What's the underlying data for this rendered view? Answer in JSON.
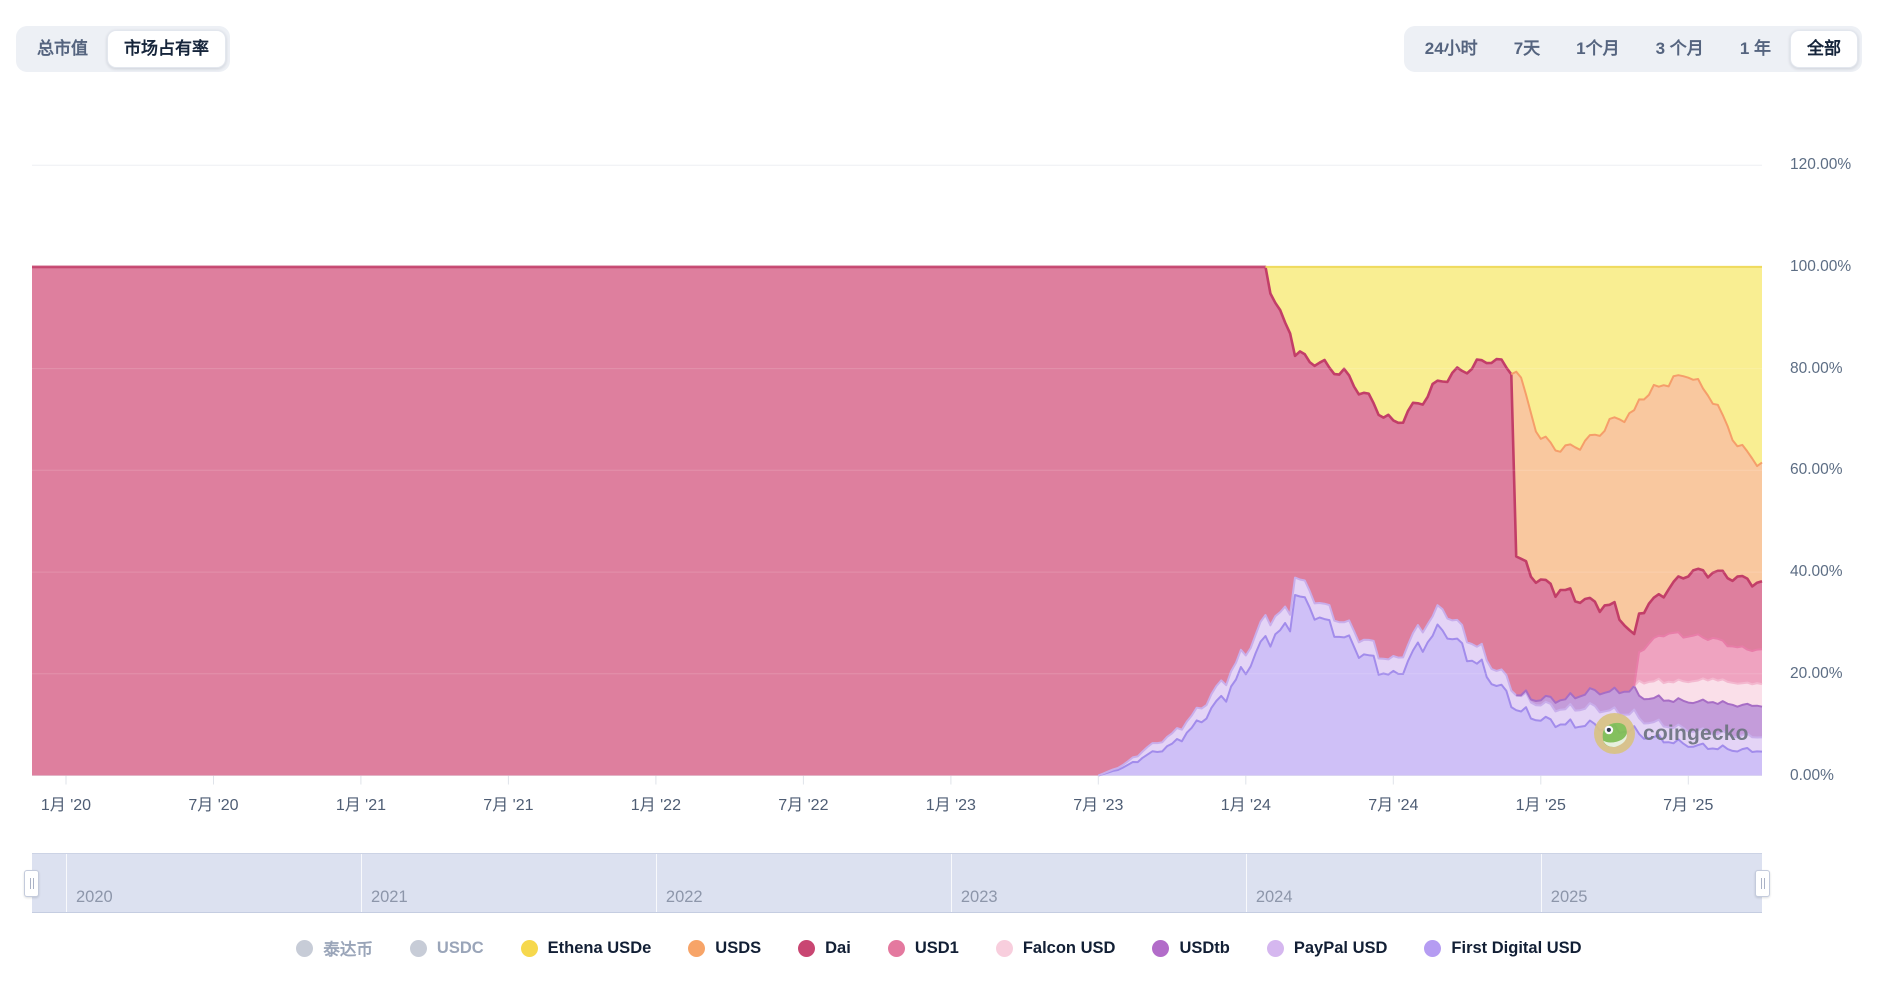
{
  "header": {
    "metric_toggle": [
      {
        "id": "total-market-cap",
        "label": "总市值",
        "selected": false
      },
      {
        "id": "market-share",
        "label": "市场占有率",
        "selected": true
      }
    ],
    "range_toggle": [
      {
        "id": "24h",
        "label": "24小时",
        "selected": false
      },
      {
        "id": "7d",
        "label": "7天",
        "selected": false
      },
      {
        "id": "1m",
        "label": "1个月",
        "selected": false
      },
      {
        "id": "3m",
        "label": "3 个月",
        "selected": false
      },
      {
        "id": "1y",
        "label": "1 年",
        "selected": false
      },
      {
        "id": "all",
        "label": "全部",
        "selected": true
      }
    ]
  },
  "chart_data": {
    "type": "area",
    "stacked": true,
    "normalized_to_percent": true,
    "x_start_month": "2019-12",
    "x_end_month": "2025-10",
    "months_total": 71,
    "ylim": [
      0,
      120
    ],
    "y_ticks": [
      {
        "label": "0.00%",
        "value": 0
      },
      {
        "label": "20.00%",
        "value": 20
      },
      {
        "label": "40.00%",
        "value": 40
      },
      {
        "label": "60.00%",
        "value": 60
      },
      {
        "label": "80.00%",
        "value": 80
      },
      {
        "label": "100.00%",
        "value": 100
      },
      {
        "label": "120.00%",
        "value": 120
      }
    ],
    "x_ticks": [
      {
        "label": "1月 '20",
        "month_index": 1
      },
      {
        "label": "7月 '20",
        "month_index": 7
      },
      {
        "label": "1月 '21",
        "month_index": 13
      },
      {
        "label": "7月 '21",
        "month_index": 19
      },
      {
        "label": "1月 '22",
        "month_index": 25
      },
      {
        "label": "7月 '22",
        "month_index": 31
      },
      {
        "label": "1月 '23",
        "month_index": 37
      },
      {
        "label": "7月 '23",
        "month_index": 43
      },
      {
        "label": "1月 '24",
        "month_index": 49
      },
      {
        "label": "7月 '24",
        "month_index": 55
      },
      {
        "label": "1月 '25",
        "month_index": 61
      },
      {
        "label": "7月 '25",
        "month_index": 67
      }
    ],
    "series_order": "bottom_to_top",
    "series": [
      {
        "name": "First Digital USD",
        "fill": "#cfc0f7",
        "stroke": "#a28ceb",
        "noise_amp": 2.0,
        "lead_count": 44,
        "lead_value": 0,
        "values": [
          1.5,
          4,
          6,
          10,
          15,
          21,
          27,
          36,
          31,
          27,
          23,
          19,
          25,
          29,
          24,
          19,
          13,
          11,
          10,
          10,
          9,
          8,
          7,
          6,
          5.5,
          5,
          4.9
        ]
      },
      {
        "name": "PayPal USD",
        "fill": "#e4d4f6",
        "stroke": "#c9aeeb",
        "noise_amp": 0.8,
        "lead_count": 44,
        "lead_value": 0,
        "values": [
          0.5,
          1.5,
          2,
          2.5,
          3,
          3.5,
          4,
          3.5,
          3,
          3,
          3,
          3,
          3.5,
          4,
          3.5,
          3,
          3,
          3,
          3,
          3.5,
          3.5,
          3,
          3,
          3,
          3,
          2.8,
          2.8
        ]
      },
      {
        "name": "USDtb",
        "fill": "#c49cda",
        "stroke": "#a76dc5",
        "noise_amp": 0.6,
        "lead_count": 61,
        "lead_value": 0,
        "values": [
          1,
          2,
          3,
          4,
          4.5,
          5,
          5.5,
          6,
          6,
          6.1
        ]
      },
      {
        "name": "Falcon USD",
        "fill": "#fadfe9",
        "stroke": "#f3b8cf",
        "noise_amp": 0.5,
        "lead_count": 65,
        "lead_value": 0,
        "values": [
          3,
          3.5,
          4,
          4.5,
          4.3,
          4.3
        ]
      },
      {
        "name": "USD1",
        "fill": "#efa3c0",
        "stroke": "#e87da8",
        "noise_amp": 0.8,
        "lead_count": 65,
        "lead_value": 0,
        "values": [
          6,
          9.5,
          9,
          8,
          7,
          6.5
        ]
      },
      {
        "name": "Dai",
        "fill": "#de7f9e",
        "stroke": "#c23e68",
        "noise_amp": 0.9,
        "lead_count": 44,
        "lead_value": 100,
        "values": [
          98,
          94.5,
          92,
          87.5,
          82,
          75.5,
          64,
          43.5,
          47,
          49,
          48,
          47,
          44.5,
          45,
          52.5,
          60,
          27,
          23,
          21,
          17.5,
          16.5,
          7.5,
          8,
          12.5,
          13,
          13.7,
          13.2
        ]
      },
      {
        "name": "USDS",
        "fill": "#f9c89f",
        "stroke": "#f59e6a",
        "noise_amp": 0.9,
        "lead_count": 60,
        "lead_value": 0,
        "values": [
          37,
          28,
          28,
          32,
          37,
          42,
          41,
          39,
          34,
          26.2,
          23.2
        ]
      },
      {
        "name": "Ethena USDe",
        "fill": "#f9ee92",
        "stroke": "#eed74f",
        "noise_amp": 0.9,
        "lead_count": 50,
        "lead_value": 0,
        "values": [
          5,
          17,
          19,
          21,
          26,
          31,
          27,
          22,
          20,
          18,
          20,
          34,
          36,
          34,
          30,
          26,
          23,
          21,
          26,
          35,
          39
        ]
      }
    ],
    "disabled_series": [
      "泰达币",
      "USDC"
    ]
  },
  "legend": {
    "items": [
      {
        "label": "泰达币",
        "color": "#c7ccd7",
        "enabled": false
      },
      {
        "label": "USDC",
        "color": "#c7ccd7",
        "enabled": false
      },
      {
        "label": "Ethena USDe",
        "color": "#f6d84d",
        "enabled": true
      },
      {
        "label": "USDS",
        "color": "#f7a468",
        "enabled": true
      },
      {
        "label": "Dai",
        "color": "#c94672",
        "enabled": true
      },
      {
        "label": "USD1",
        "color": "#e4799f",
        "enabled": true
      },
      {
        "label": "Falcon USD",
        "color": "#f8cedd",
        "enabled": true
      },
      {
        "label": "USDtb",
        "color": "#b26cc9",
        "enabled": true
      },
      {
        "label": "PayPal USD",
        "color": "#d5b7ef",
        "enabled": true
      },
      {
        "label": "First Digital USD",
        "color": "#b59cf2",
        "enabled": true
      }
    ]
  },
  "navigator": {
    "years": [
      {
        "label": "2020",
        "month_index": 1
      },
      {
        "label": "2021",
        "month_index": 13
      },
      {
        "label": "2022",
        "month_index": 25
      },
      {
        "label": "2023",
        "month_index": 37
      },
      {
        "label": "2024",
        "month_index": 49
      },
      {
        "label": "2025",
        "month_index": 61
      }
    ]
  },
  "watermark": {
    "text": "coingecko"
  },
  "colors": {
    "grid": "#edeff3",
    "axis_line": "#e5e8ee",
    "navigator_bg": "#dce1f0"
  }
}
